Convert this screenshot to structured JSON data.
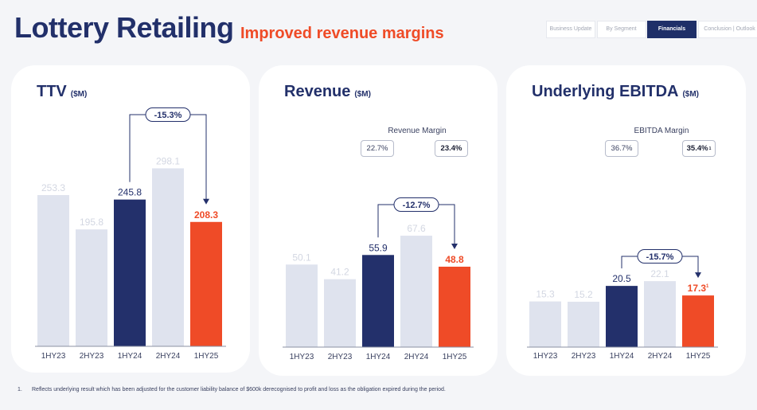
{
  "header": {
    "title": "Lottery Retailing",
    "subtitle": "Improved revenue margins"
  },
  "nav": {
    "tabs": [
      {
        "label": "Business Update",
        "active": false
      },
      {
        "label": "By Segment",
        "active": false
      },
      {
        "label": "Financials",
        "active": true
      },
      {
        "label": "Conclusion | Outlook",
        "active": false
      }
    ]
  },
  "colors": {
    "navy": "#23306b",
    "orange": "#ef4b27",
    "light": "#dfe3ee",
    "lightText": "#d3d7e2"
  },
  "panels": {
    "ttv": {
      "title": "TTV",
      "unit": "($M)"
    },
    "revenue": {
      "title": "Revenue",
      "unit": "($M)",
      "margin": {
        "label": "Revenue Margin",
        "prior": "22.7%",
        "current": "23.4%"
      }
    },
    "ebitda": {
      "title": "Underlying EBITDA",
      "unit": "($M)",
      "margin": {
        "label": "EBITDA Margin",
        "prior": "36.7%",
        "current": "35.4%",
        "current_footnote": "1"
      }
    }
  },
  "chart_data": [
    {
      "type": "bar",
      "title": "TTV ($M)",
      "categories": [
        "1HY23",
        "2HY23",
        "1HY24",
        "2HY24",
        "1HY25"
      ],
      "values": [
        253.3,
        195.8,
        245.8,
        298.1,
        208.3
      ],
      "labels": [
        "253.3",
        "195.8",
        "245.8",
        "298.1",
        "208.3"
      ],
      "ylim": [
        0,
        340
      ],
      "highlight": {
        "prior_index": 2,
        "current_index": 4
      },
      "change": {
        "label": "-15.3%",
        "from_index": 2,
        "to_index": 4
      }
    },
    {
      "type": "bar",
      "title": "Revenue ($M)",
      "categories": [
        "1HY23",
        "2HY23",
        "1HY24",
        "2HY24",
        "1HY25"
      ],
      "values": [
        50.1,
        41.2,
        55.9,
        67.6,
        48.8
      ],
      "labels": [
        "50.1",
        "41.2",
        "55.9",
        "67.6",
        "48.8"
      ],
      "ylim": [
        0,
        100
      ],
      "highlight": {
        "prior_index": 2,
        "current_index": 4
      },
      "change": {
        "label": "-12.7%",
        "from_index": 2,
        "to_index": 4
      }
    },
    {
      "type": "bar",
      "title": "Underlying EBITDA ($M)",
      "categories": [
        "1HY23",
        "2HY23",
        "1HY24",
        "2HY24",
        "1HY25"
      ],
      "values": [
        15.3,
        15.2,
        20.5,
        22.1,
        17.3
      ],
      "labels": [
        "15.3",
        "15.2",
        "20.5",
        "22.1",
        "17.3"
      ],
      "label_footnote": {
        "index": 4,
        "mark": "1"
      },
      "ylim": [
        0,
        55
      ],
      "highlight": {
        "prior_index": 2,
        "current_index": 4
      },
      "change": {
        "label": "-15.7%",
        "from_index": 2,
        "to_index": 4
      }
    }
  ],
  "footnote": {
    "number": "1.",
    "text": "Reflects underlying result which has been adjusted for the customer liability balance of $600k derecognised to profit and loss as the obligation expired during the period."
  }
}
